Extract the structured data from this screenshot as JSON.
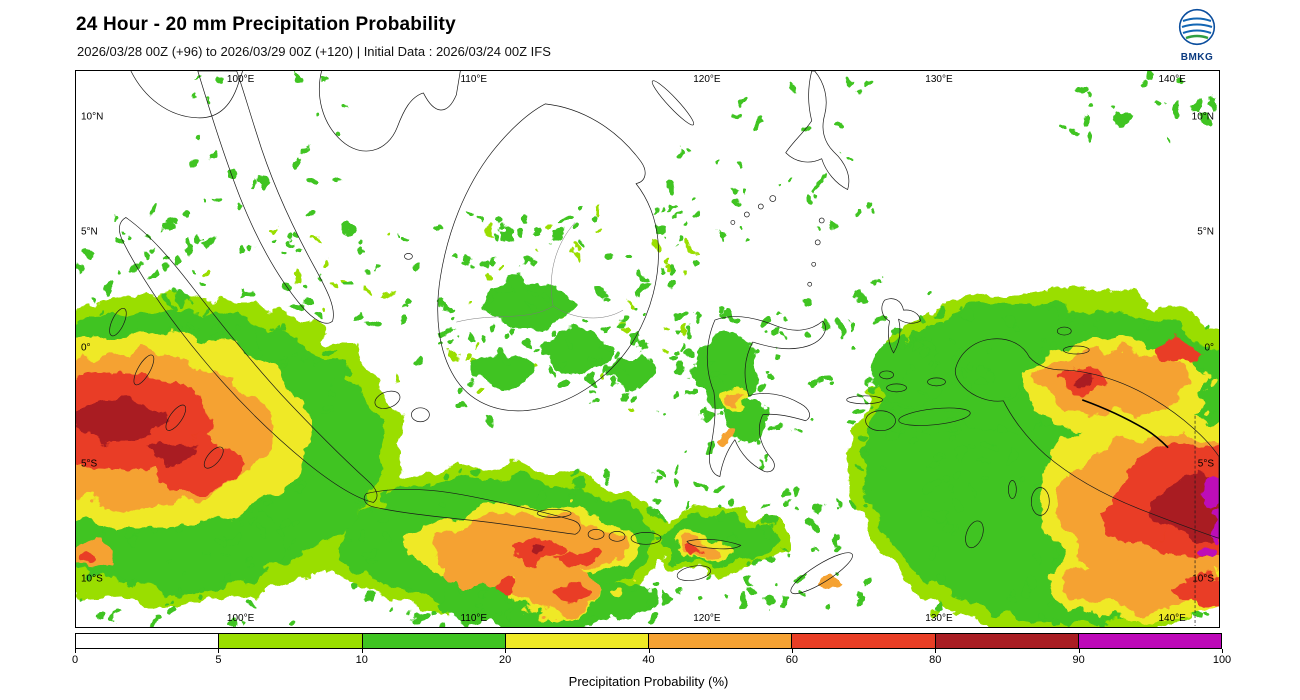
{
  "header": {
    "title": "24 Hour - 20 mm Precipitation Probability",
    "subtitle": "2026/03/28 00Z (+96) to 2026/03/29 00Z (+120) | Initial Data : 2026/03/24 00Z IFS"
  },
  "logo": {
    "label": "BMKG"
  },
  "map": {
    "lon_ticks": [
      "100°E",
      "110°E",
      "120°E",
      "130°E",
      "140°E"
    ],
    "lat_ticks": [
      "10°N",
      "5°N",
      "0°",
      "5°S",
      "10°S"
    ]
  },
  "colorbar": {
    "label": "Precipitation Probability (%)",
    "ticks": [
      "0",
      "5",
      "10",
      "20",
      "40",
      "60",
      "80",
      "90",
      "100"
    ],
    "segments": [
      {
        "key": "p0",
        "range": "0-5",
        "color": "#ffffff"
      },
      {
        "key": "p5",
        "range": "5-10",
        "color": "#9ade00"
      },
      {
        "key": "p10",
        "range": "10-20",
        "color": "#3fc421"
      },
      {
        "key": "p20",
        "range": "20-40",
        "color": "#efe926"
      },
      {
        "key": "p40",
        "range": "40-60",
        "color": "#f5a233"
      },
      {
        "key": "p60",
        "range": "60-80",
        "color": "#e93e25"
      },
      {
        "key": "p80",
        "range": "80-90",
        "color": "#a91d23"
      },
      {
        "key": "p90",
        "range": "90-100",
        "color": "#bd09b8"
      }
    ]
  }
}
